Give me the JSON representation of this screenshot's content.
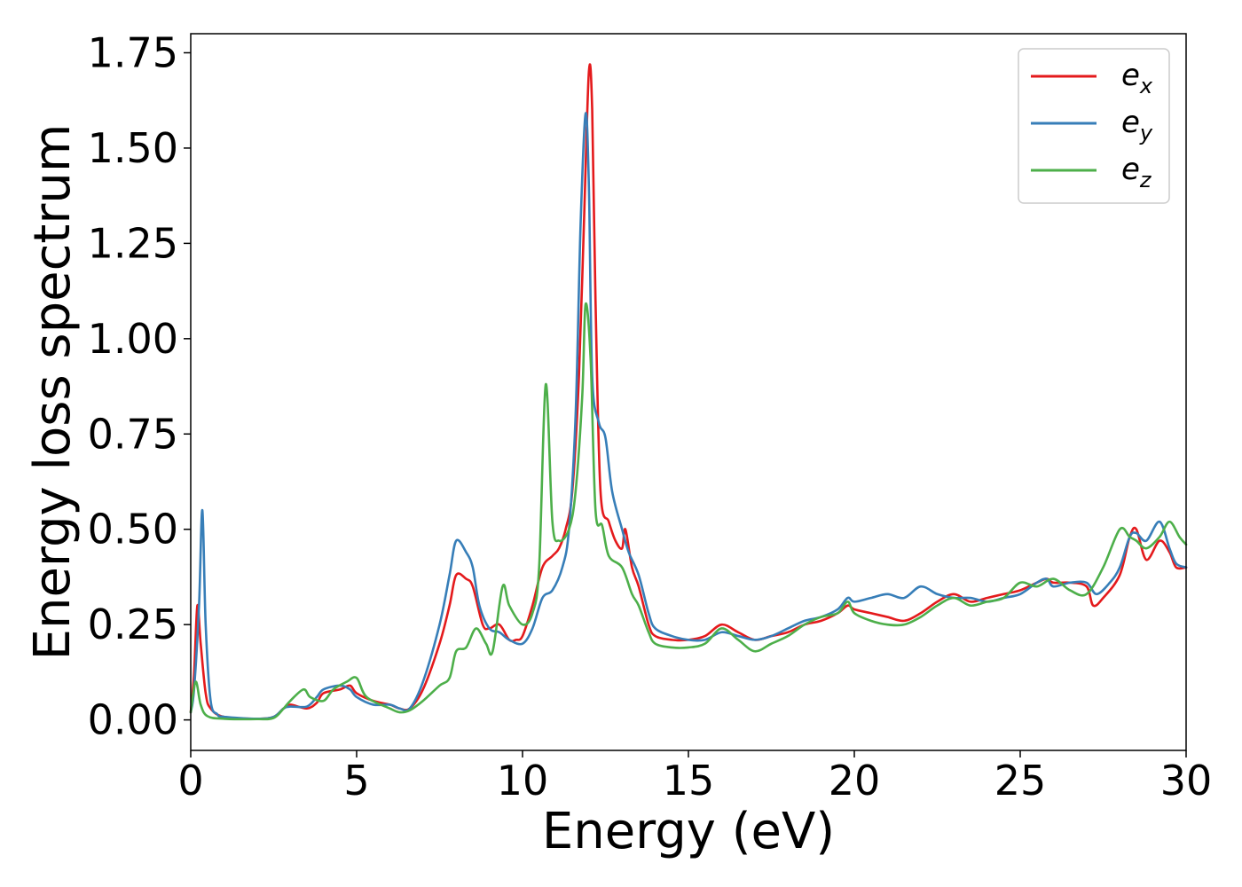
{
  "chart_data": {
    "type": "line",
    "xlabel": "Energy (eV)",
    "ylabel": "Energy loss spectrum",
    "xlim": [
      0,
      30
    ],
    "ylim": [
      -0.08,
      1.8
    ],
    "xticks": [
      0,
      5,
      10,
      15,
      20,
      25,
      30
    ],
    "xtick_labels": [
      "0",
      "5",
      "10",
      "15",
      "20",
      "25",
      "30"
    ],
    "yticks": [
      0.0,
      0.25,
      0.5,
      0.75,
      1.0,
      1.25,
      1.5,
      1.75
    ],
    "ytick_labels": [
      "0.00",
      "0.25",
      "0.50",
      "0.75",
      "1.00",
      "1.25",
      "1.50",
      "1.75"
    ],
    "grid": false,
    "legend_position": "top-right",
    "series": [
      {
        "name": "e_x",
        "legend_base": "e",
        "legend_sub": "x",
        "color": "#e41a1c",
        "points": [
          [
            0,
            0.02
          ],
          [
            0.1,
            0.12
          ],
          [
            0.2,
            0.3
          ],
          [
            0.3,
            0.2
          ],
          [
            0.45,
            0.07
          ],
          [
            0.6,
            0.03
          ],
          [
            1,
            0.008
          ],
          [
            2,
            0.003
          ],
          [
            2.5,
            0.008
          ],
          [
            2.8,
            0.03
          ],
          [
            3,
            0.04
          ],
          [
            3.5,
            0.03
          ],
          [
            3.8,
            0.045
          ],
          [
            4,
            0.07
          ],
          [
            4.5,
            0.08
          ],
          [
            4.8,
            0.09
          ],
          [
            5,
            0.07
          ],
          [
            5.5,
            0.05
          ],
          [
            6,
            0.04
          ],
          [
            6.3,
            0.03
          ],
          [
            6.6,
            0.03
          ],
          [
            7,
            0.08
          ],
          [
            7.5,
            0.2
          ],
          [
            7.8,
            0.3
          ],
          [
            8,
            0.38
          ],
          [
            8.3,
            0.37
          ],
          [
            8.5,
            0.35
          ],
          [
            8.8,
            0.25
          ],
          [
            9,
            0.24
          ],
          [
            9.3,
            0.25
          ],
          [
            9.6,
            0.21
          ],
          [
            9.8,
            0.21
          ],
          [
            10,
            0.22
          ],
          [
            10.3,
            0.3
          ],
          [
            10.6,
            0.4
          ],
          [
            10.9,
            0.43
          ],
          [
            11.1,
            0.45
          ],
          [
            11.3,
            0.5
          ],
          [
            11.5,
            0.6
          ],
          [
            11.7,
            0.9
          ],
          [
            11.85,
            1.3
          ],
          [
            12,
            1.7
          ],
          [
            12.1,
            1.6
          ],
          [
            12.2,
            1.1
          ],
          [
            12.35,
            0.6
          ],
          [
            12.6,
            0.52
          ],
          [
            12.8,
            0.47
          ],
          [
            13,
            0.45
          ],
          [
            13.1,
            0.5
          ],
          [
            13.3,
            0.4
          ],
          [
            13.5,
            0.35
          ],
          [
            13.8,
            0.25
          ],
          [
            14,
            0.22
          ],
          [
            14.5,
            0.21
          ],
          [
            15,
            0.21
          ],
          [
            15.5,
            0.22
          ],
          [
            16,
            0.25
          ],
          [
            16.5,
            0.23
          ],
          [
            17,
            0.21
          ],
          [
            17.5,
            0.22
          ],
          [
            18,
            0.23
          ],
          [
            18.5,
            0.25
          ],
          [
            19,
            0.26
          ],
          [
            19.5,
            0.28
          ],
          [
            19.8,
            0.3
          ],
          [
            20,
            0.29
          ],
          [
            20.5,
            0.28
          ],
          [
            21,
            0.27
          ],
          [
            21.5,
            0.26
          ],
          [
            22,
            0.28
          ],
          [
            22.5,
            0.31
          ],
          [
            23,
            0.33
          ],
          [
            23.5,
            0.31
          ],
          [
            24,
            0.32
          ],
          [
            24.5,
            0.33
          ],
          [
            25,
            0.34
          ],
          [
            25.5,
            0.36
          ],
          [
            25.8,
            0.37
          ],
          [
            26,
            0.36
          ],
          [
            26.5,
            0.36
          ],
          [
            27,
            0.35
          ],
          [
            27.2,
            0.3
          ],
          [
            27.5,
            0.32
          ],
          [
            28,
            0.38
          ],
          [
            28.3,
            0.48
          ],
          [
            28.5,
            0.5
          ],
          [
            28.8,
            0.42
          ],
          [
            29.2,
            0.47
          ],
          [
            29.5,
            0.44
          ],
          [
            29.7,
            0.4
          ],
          [
            30,
            0.4
          ]
        ]
      },
      {
        "name": "e_y",
        "legend_base": "e",
        "legend_sub": "y",
        "color": "#377eb8",
        "points": [
          [
            0,
            0.02
          ],
          [
            0.1,
            0.08
          ],
          [
            0.25,
            0.3
          ],
          [
            0.35,
            0.55
          ],
          [
            0.45,
            0.25
          ],
          [
            0.6,
            0.05
          ],
          [
            0.8,
            0.015
          ],
          [
            1,
            0.008
          ],
          [
            2,
            0.003
          ],
          [
            2.5,
            0.008
          ],
          [
            2.8,
            0.03
          ],
          [
            3,
            0.035
          ],
          [
            3.5,
            0.035
          ],
          [
            3.8,
            0.06
          ],
          [
            4,
            0.08
          ],
          [
            4.5,
            0.09
          ],
          [
            4.8,
            0.08
          ],
          [
            5,
            0.06
          ],
          [
            5.5,
            0.04
          ],
          [
            6,
            0.04
          ],
          [
            6.3,
            0.03
          ],
          [
            6.6,
            0.03
          ],
          [
            7,
            0.1
          ],
          [
            7.5,
            0.25
          ],
          [
            7.8,
            0.38
          ],
          [
            8,
            0.47
          ],
          [
            8.3,
            0.44
          ],
          [
            8.5,
            0.4
          ],
          [
            8.7,
            0.3
          ],
          [
            9,
            0.24
          ],
          [
            9.3,
            0.23
          ],
          [
            9.6,
            0.21
          ],
          [
            10,
            0.2
          ],
          [
            10.3,
            0.24
          ],
          [
            10.6,
            0.32
          ],
          [
            10.9,
            0.34
          ],
          [
            11.2,
            0.4
          ],
          [
            11.4,
            0.5
          ],
          [
            11.6,
            0.8
          ],
          [
            11.75,
            1.3
          ],
          [
            11.9,
            1.59
          ],
          [
            12,
            1.4
          ],
          [
            12.1,
            0.9
          ],
          [
            12.3,
            0.78
          ],
          [
            12.5,
            0.74
          ],
          [
            12.7,
            0.6
          ],
          [
            13,
            0.5
          ],
          [
            13.2,
            0.44
          ],
          [
            13.5,
            0.38
          ],
          [
            13.8,
            0.28
          ],
          [
            14,
            0.24
          ],
          [
            14.5,
            0.22
          ],
          [
            15,
            0.21
          ],
          [
            15.5,
            0.21
          ],
          [
            16,
            0.23
          ],
          [
            16.5,
            0.22
          ],
          [
            17,
            0.21
          ],
          [
            17.5,
            0.22
          ],
          [
            18,
            0.24
          ],
          [
            18.5,
            0.26
          ],
          [
            19,
            0.27
          ],
          [
            19.5,
            0.29
          ],
          [
            19.8,
            0.32
          ],
          [
            20,
            0.31
          ],
          [
            20.5,
            0.32
          ],
          [
            21,
            0.33
          ],
          [
            21.5,
            0.32
          ],
          [
            22,
            0.35
          ],
          [
            22.5,
            0.33
          ],
          [
            23,
            0.32
          ],
          [
            23.5,
            0.32
          ],
          [
            24,
            0.31
          ],
          [
            24.5,
            0.32
          ],
          [
            25,
            0.33
          ],
          [
            25.5,
            0.36
          ],
          [
            25.8,
            0.37
          ],
          [
            26,
            0.35
          ],
          [
            26.5,
            0.36
          ],
          [
            27,
            0.36
          ],
          [
            27.3,
            0.33
          ],
          [
            27.7,
            0.36
          ],
          [
            28,
            0.4
          ],
          [
            28.3,
            0.48
          ],
          [
            28.5,
            0.49
          ],
          [
            28.8,
            0.47
          ],
          [
            29.2,
            0.52
          ],
          [
            29.5,
            0.45
          ],
          [
            29.7,
            0.41
          ],
          [
            30,
            0.4
          ]
        ]
      },
      {
        "name": "e_z",
        "legend_base": "e",
        "legend_sub": "z",
        "color": "#4daf4a",
        "points": [
          [
            0,
            0.02
          ],
          [
            0.15,
            0.1
          ],
          [
            0.3,
            0.04
          ],
          [
            0.5,
            0.01
          ],
          [
            1,
            0.003
          ],
          [
            2,
            0.002
          ],
          [
            2.5,
            0.005
          ],
          [
            2.8,
            0.03
          ],
          [
            3,
            0.05
          ],
          [
            3.4,
            0.08
          ],
          [
            3.6,
            0.06
          ],
          [
            4,
            0.05
          ],
          [
            4.3,
            0.08
          ],
          [
            4.7,
            0.1
          ],
          [
            5,
            0.11
          ],
          [
            5.3,
            0.06
          ],
          [
            6,
            0.03
          ],
          [
            6.3,
            0.02
          ],
          [
            6.6,
            0.025
          ],
          [
            7,
            0.05
          ],
          [
            7.5,
            0.09
          ],
          [
            7.8,
            0.11
          ],
          [
            8,
            0.18
          ],
          [
            8.3,
            0.19
          ],
          [
            8.6,
            0.24
          ],
          [
            8.9,
            0.2
          ],
          [
            9.1,
            0.18
          ],
          [
            9.4,
            0.35
          ],
          [
            9.6,
            0.3
          ],
          [
            10,
            0.25
          ],
          [
            10.3,
            0.28
          ],
          [
            10.5,
            0.4
          ],
          [
            10.7,
            0.88
          ],
          [
            10.9,
            0.52
          ],
          [
            11.1,
            0.47
          ],
          [
            11.4,
            0.5
          ],
          [
            11.6,
            0.6
          ],
          [
            11.8,
            0.85
          ],
          [
            11.9,
            1.09
          ],
          [
            12.05,
            0.95
          ],
          [
            12.2,
            0.55
          ],
          [
            12.4,
            0.51
          ],
          [
            12.6,
            0.43
          ],
          [
            13,
            0.4
          ],
          [
            13.3,
            0.33
          ],
          [
            13.5,
            0.3
          ],
          [
            13.8,
            0.23
          ],
          [
            14,
            0.2
          ],
          [
            14.5,
            0.19
          ],
          [
            15,
            0.19
          ],
          [
            15.5,
            0.2
          ],
          [
            16,
            0.24
          ],
          [
            16.5,
            0.21
          ],
          [
            17,
            0.18
          ],
          [
            17.5,
            0.2
          ],
          [
            18,
            0.22
          ],
          [
            18.5,
            0.25
          ],
          [
            19,
            0.27
          ],
          [
            19.5,
            0.28
          ],
          [
            19.8,
            0.31
          ],
          [
            20,
            0.28
          ],
          [
            20.5,
            0.26
          ],
          [
            21,
            0.25
          ],
          [
            21.5,
            0.25
          ],
          [
            22,
            0.27
          ],
          [
            22.5,
            0.3
          ],
          [
            23,
            0.32
          ],
          [
            23.5,
            0.3
          ],
          [
            24,
            0.31
          ],
          [
            24.5,
            0.32
          ],
          [
            25,
            0.36
          ],
          [
            25.5,
            0.35
          ],
          [
            26,
            0.37
          ],
          [
            26.5,
            0.34
          ],
          [
            27,
            0.33
          ],
          [
            27.5,
            0.4
          ],
          [
            28,
            0.5
          ],
          [
            28.3,
            0.48
          ],
          [
            28.5,
            0.47
          ],
          [
            28.8,
            0.45
          ],
          [
            29.2,
            0.48
          ],
          [
            29.5,
            0.52
          ],
          [
            29.8,
            0.48
          ],
          [
            30,
            0.46
          ]
        ]
      }
    ]
  }
}
